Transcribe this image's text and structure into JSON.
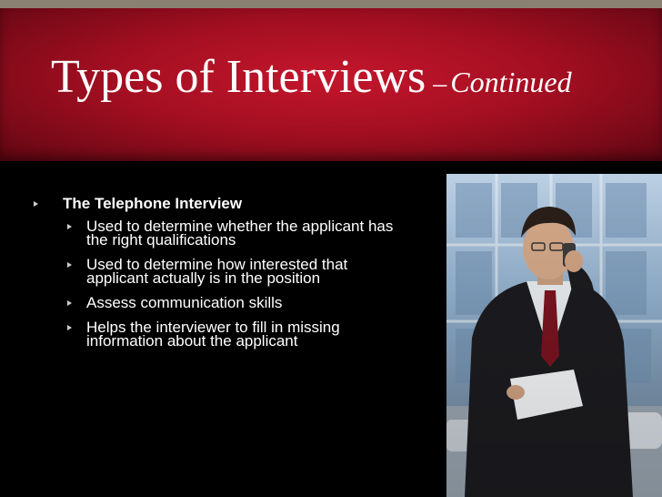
{
  "slide": {
    "title_main": "Types of Interviews",
    "title_dash": "–",
    "title_continued": "Continued"
  },
  "content": {
    "heading": "The Telephone Interview",
    "bullets": [
      "Used to determine whether the applicant has the right qualifications",
      "Used to determine how interested that applicant actually is in the position",
      "Assess communication skills",
      "Helps the interviewer to fill in missing information about the applicant"
    ]
  },
  "colors": {
    "title_band": "#a50f22",
    "background": "#000000",
    "text": "#ffffff"
  }
}
